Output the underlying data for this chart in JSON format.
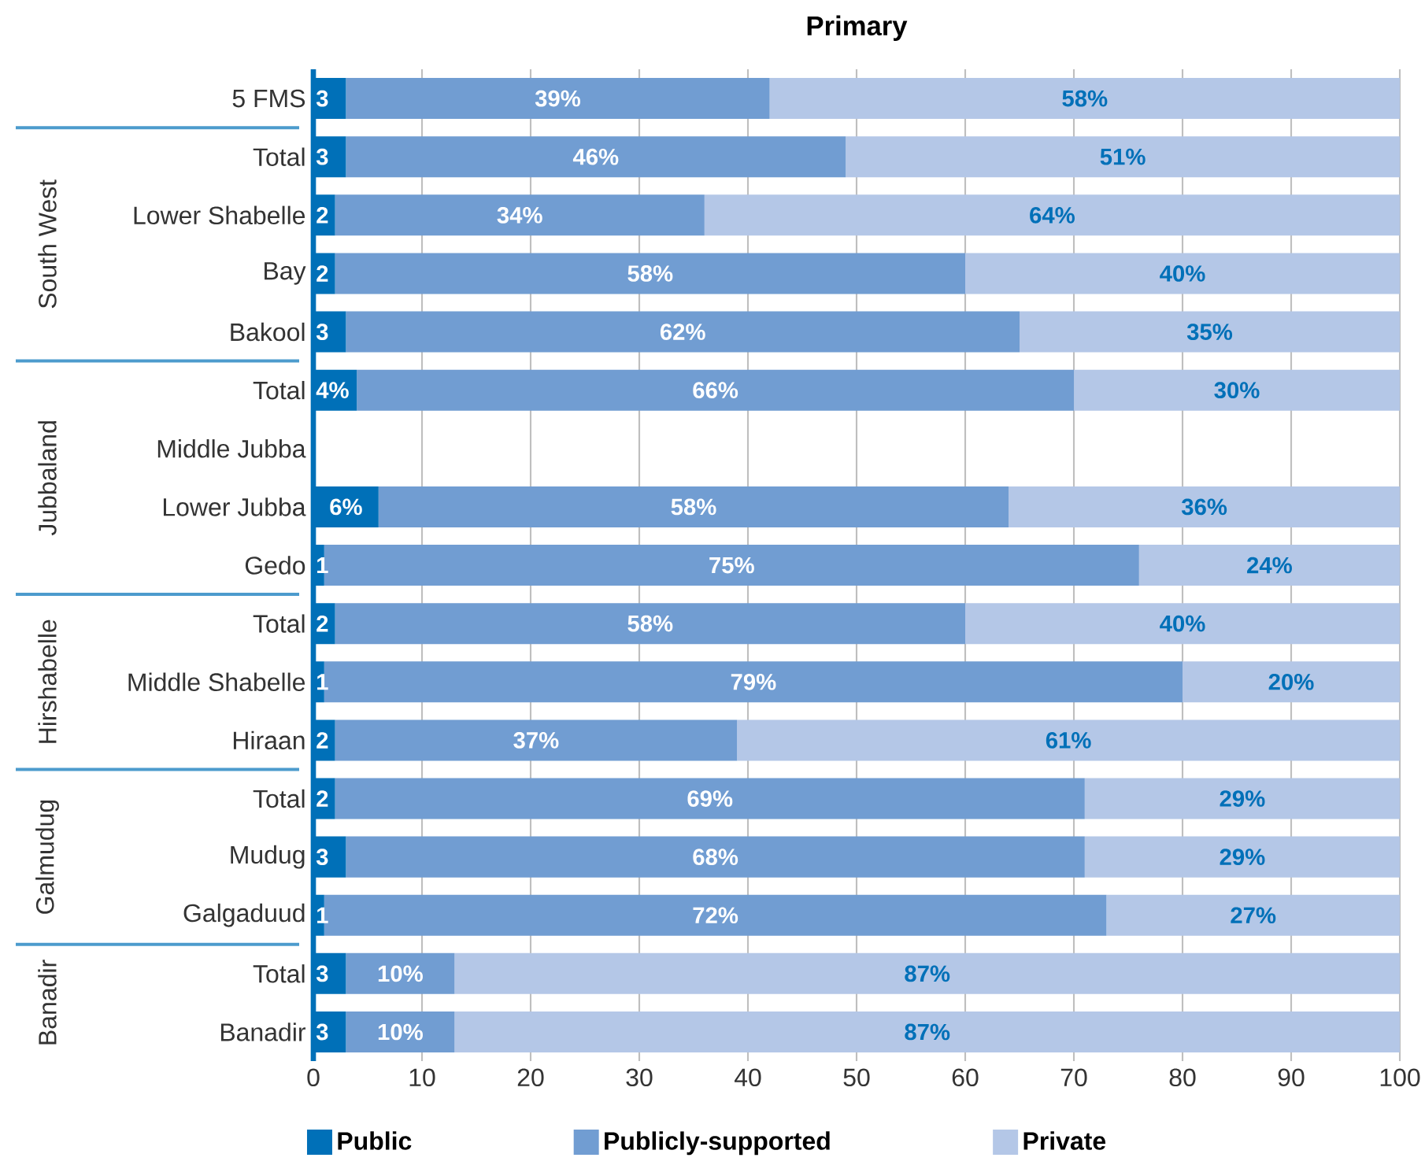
{
  "chart_data": {
    "type": "bar",
    "orientation": "horizontal",
    "stacked": true,
    "title": "Primary",
    "categories": [
      "5 FMS",
      "Total",
      "Lower Shabelle",
      "Bay",
      "Bakool",
      "Total",
      "Middle Jubba",
      "Lower Jubba",
      "Gedo",
      "Total",
      "Middle Shabelle",
      "Hiraan",
      "Total",
      "Mudug",
      "Galgaduud",
      "Total",
      "Banadir"
    ],
    "series": [
      {
        "name": "Public",
        "color": "#0070b8",
        "values": [
          3,
          3,
          2,
          2,
          3,
          4,
          null,
          6,
          1,
          2,
          1,
          2,
          2,
          3,
          1,
          3,
          3
        ],
        "value_labels": [
          "3",
          "3",
          "2",
          "2",
          "3",
          "4%",
          null,
          "6%",
          "1",
          "2",
          "1",
          "2",
          "2",
          "3",
          "1",
          "3",
          "3"
        ]
      },
      {
        "name": "Publicly-supported",
        "color": "#719dd2",
        "values": [
          39,
          46,
          34,
          58,
          62,
          66,
          null,
          58,
          75,
          58,
          79,
          37,
          69,
          68,
          72,
          10,
          10
        ],
        "value_labels": [
          "39%",
          "46%",
          "34%",
          "58%",
          "62%",
          "66%",
          null,
          "58%",
          "75%",
          "58%",
          "79%",
          "37%",
          "69%",
          "68%",
          "72%",
          "10%",
          "10%"
        ]
      },
      {
        "name": "Private",
        "color": "#b4c7e7",
        "values": [
          58,
          51,
          64,
          40,
          35,
          30,
          null,
          36,
          24,
          40,
          20,
          61,
          29,
          29,
          27,
          87,
          87
        ],
        "value_labels": [
          "58%",
          "51%",
          "64%",
          "40%",
          "35%",
          "30%",
          null,
          "36%",
          "24%",
          "40%",
          "20%",
          "61%",
          "29%",
          "29%",
          "27%",
          "87%",
          "87%"
        ]
      }
    ],
    "xlim": [
      0,
      100
    ],
    "xticks": [
      0,
      10,
      20,
      30,
      40,
      50,
      60,
      70,
      80,
      90,
      100
    ],
    "grid": "x",
    "legend": "bottom",
    "annotations": [
      "South West",
      "Jubbaland",
      "Hirshabelle",
      "Galmudug",
      "Banadir"
    ]
  }
}
